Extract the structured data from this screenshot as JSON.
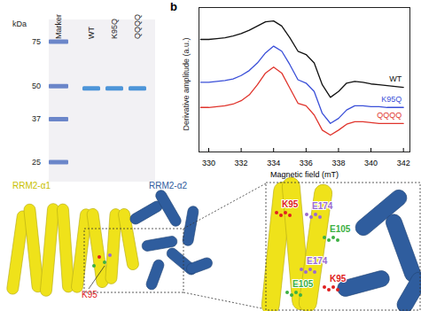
{
  "gel": {
    "unit_label": "kDa",
    "marker_label": "Marker",
    "lanes": [
      "WT",
      "K95Q",
      "QQQQ"
    ],
    "marker_bands_kDa": [
      75,
      50,
      37,
      25
    ],
    "sample_bands_kDa": [
      49,
      49,
      49
    ]
  },
  "chart_data": {
    "type": "line",
    "title": "b",
    "x_label": "Magnetic field (mT)",
    "y_label": "Derivative amplitude (a.u.)",
    "x": [
      329.5,
      330,
      330.5,
      331,
      331.5,
      332,
      332.5,
      333,
      333.5,
      334,
      334.5,
      335,
      335.5,
      336,
      336.5,
      337,
      337.5,
      338,
      338.5,
      339,
      339.5,
      340,
      340.5,
      341,
      341.5,
      342
    ],
    "series": [
      {
        "name": "WT",
        "color": "#111111",
        "values": [
          8.3,
          8.3,
          8.35,
          8.4,
          8.5,
          8.65,
          8.85,
          9.1,
          9.35,
          9.4,
          9.1,
          8.4,
          7.6,
          7.4,
          6.9,
          5.6,
          4.85,
          5.2,
          5.7,
          5.8,
          5.75,
          5.65,
          5.6,
          5.55,
          5.5,
          5.45
        ]
      },
      {
        "name": "K95Q",
        "color": "#3a4fd8",
        "values": [
          5.75,
          5.75,
          5.8,
          5.85,
          5.95,
          6.15,
          6.45,
          6.9,
          7.5,
          7.9,
          7.6,
          6.8,
          5.9,
          5.7,
          5.2,
          3.9,
          3.3,
          3.6,
          4.1,
          4.35,
          4.35,
          4.3,
          4.3,
          4.25,
          4.25,
          4.25
        ]
      },
      {
        "name": "QQQQ",
        "color": "#e0342c",
        "values": [
          4.25,
          4.25,
          4.3,
          4.35,
          4.45,
          4.65,
          5.0,
          5.6,
          6.3,
          6.65,
          6.3,
          5.4,
          4.5,
          4.35,
          3.8,
          2.9,
          2.6,
          2.9,
          3.25,
          3.4,
          3.4,
          3.35,
          3.3,
          3.3,
          3.3,
          3.3
        ]
      }
    ],
    "xlim": [
      329.4,
      342.4
    ],
    "xticks": [
      330,
      332,
      334,
      336,
      338,
      340,
      342
    ],
    "ylim": [
      1.6,
      10.2
    ],
    "yticks": [],
    "tick_labels": "x"
  },
  "structure": {
    "overview_labels": [
      {
        "text": "RRM2-α1",
        "color": "#c8bf00"
      },
      {
        "text": "RRM2-α2",
        "color": "#2f5d9e"
      },
      {
        "text": "K95",
        "color": "#e02020"
      }
    ],
    "zoom_labels": [
      {
        "text": "K95",
        "color": "#e02020"
      },
      {
        "text": "E174",
        "color": "#9a6ad0"
      },
      {
        "text": "E105",
        "color": "#3cb043"
      },
      {
        "text": "E174",
        "color": "#9a6ad0"
      },
      {
        "text": "K95",
        "color": "#e02020"
      },
      {
        "text": "E105",
        "color": "#3cb043"
      }
    ]
  }
}
